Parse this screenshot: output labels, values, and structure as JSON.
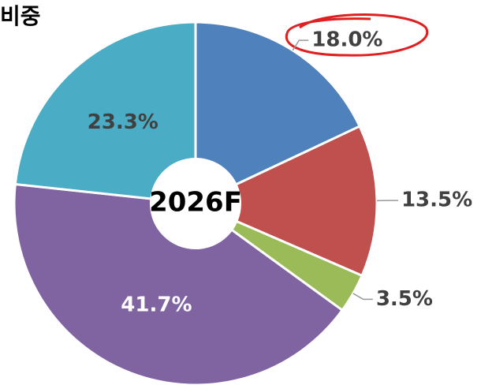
{
  "chart_data": {
    "type": "donut",
    "title": "비중",
    "center_label": "2026F",
    "categories": [
      null,
      null,
      null,
      null,
      null
    ],
    "values": [
      18.0,
      13.5,
      3.5,
      41.7,
      23.3
    ],
    "value_labels": [
      "18.0%",
      "13.5%",
      "3.5%",
      "41.7%",
      "23.3%"
    ],
    "colors": [
      "#4f81bd",
      "#c0504d",
      "#9bbb59",
      "#8064a2",
      "#4bacc6"
    ]
  }
}
